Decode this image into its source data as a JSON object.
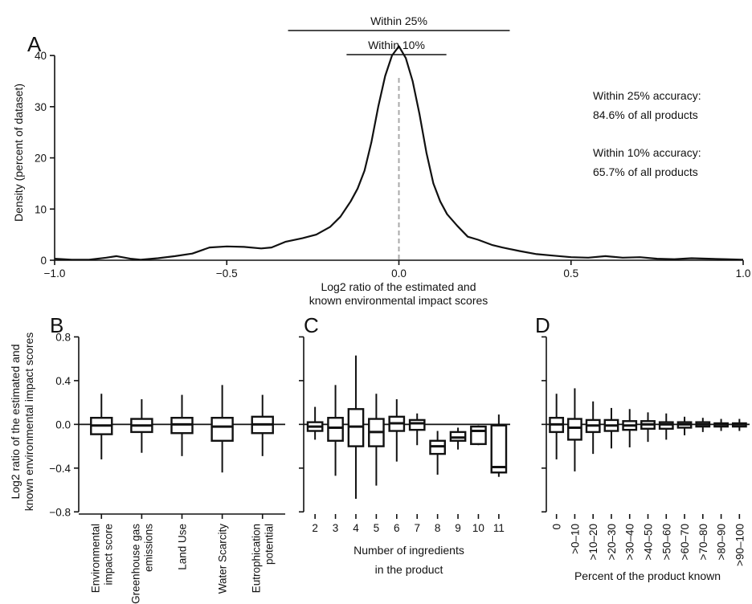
{
  "chart_data": [
    {
      "panel": "A",
      "type": "line",
      "xlabel_lines": [
        "Log2 ratio of the estimated and",
        "known environmental impact scores"
      ],
      "ylabel": "Density (percent of dataset)",
      "xlim": [
        -1.0,
        1.0
      ],
      "ylim": [
        0,
        43
      ],
      "x_ticks": [
        "−1.0",
        "−0.5",
        "0.0",
        "0.5",
        "1.0"
      ],
      "x_tick_values": [
        -1.0,
        -0.5,
        0.0,
        0.5,
        1.0
      ],
      "y_ticks": [
        0,
        10,
        20,
        30,
        40
      ],
      "reference_line_x": 0.0,
      "brackets": [
        {
          "label": "Within 25%",
          "from": -0.322,
          "to": 0.322
        },
        {
          "label": "Within 10%",
          "from": -0.152,
          "to": 0.138
        }
      ],
      "annotations": [
        [
          "Within 25% accuracy:",
          "84.6% of all products"
        ],
        [
          "Within 10% accuracy:",
          "65.7% of all products"
        ]
      ],
      "x": [
        -1.0,
        -0.95,
        -0.9,
        -0.85,
        -0.82,
        -0.78,
        -0.75,
        -0.7,
        -0.65,
        -0.6,
        -0.55,
        -0.5,
        -0.45,
        -0.4,
        -0.37,
        -0.33,
        -0.28,
        -0.24,
        -0.2,
        -0.17,
        -0.14,
        -0.12,
        -0.1,
        -0.08,
        -0.06,
        -0.04,
        -0.02,
        0.0,
        0.02,
        0.04,
        0.06,
        0.08,
        0.1,
        0.12,
        0.14,
        0.17,
        0.2,
        0.23,
        0.27,
        0.3,
        0.35,
        0.4,
        0.45,
        0.5,
        0.55,
        0.6,
        0.65,
        0.7,
        0.75,
        0.8,
        0.85,
        0.9,
        0.95,
        1.0
      ],
      "y": [
        0.3,
        0.1,
        0.1,
        0.5,
        0.8,
        0.3,
        0.1,
        0.4,
        0.8,
        1.3,
        2.5,
        2.7,
        2.6,
        2.3,
        2.5,
        3.6,
        4.3,
        5.0,
        6.5,
        8.5,
        11.5,
        14.0,
        17.5,
        23.0,
        30.0,
        36.0,
        40.0,
        41.8,
        39.5,
        35.0,
        28.5,
        21.0,
        15.0,
        11.5,
        9.0,
        6.7,
        4.6,
        4.0,
        3.0,
        2.5,
        1.8,
        1.2,
        0.9,
        0.6,
        0.5,
        0.8,
        0.5,
        0.6,
        0.3,
        0.2,
        0.4,
        0.3,
        0.2,
        0.1
      ]
    },
    {
      "panel": "B",
      "type": "box",
      "ylabel_lines": [
        "Log2 ratio of the estimated and",
        "known environmental impact scores"
      ],
      "ylim": [
        -0.82,
        0.84
      ],
      "y_ticks": [
        0.8,
        0.4,
        0.0,
        -0.4,
        -0.8
      ],
      "y_tick_labels": [
        "0.8",
        "0.4",
        "0.0",
        "−0.4",
        "−0.8"
      ],
      "categories": [
        [
          "Environmental",
          "impact score"
        ],
        [
          "Greenhouse gas",
          "emissions"
        ],
        [
          "Land Use"
        ],
        [
          "Water Scarcity"
        ],
        [
          "Eutrophication",
          "potential"
        ]
      ],
      "boxes": [
        {
          "whisker_low": -0.32,
          "q1": -0.09,
          "median": -0.01,
          "q3": 0.06,
          "whisker_high": 0.28
        },
        {
          "whisker_low": -0.26,
          "q1": -0.07,
          "median": -0.01,
          "q3": 0.05,
          "whisker_high": 0.23
        },
        {
          "whisker_low": -0.29,
          "q1": -0.08,
          "median": 0.0,
          "q3": 0.06,
          "whisker_high": 0.27
        },
        {
          "whisker_low": -0.44,
          "q1": -0.15,
          "median": -0.02,
          "q3": 0.06,
          "whisker_high": 0.36
        },
        {
          "whisker_low": -0.29,
          "q1": -0.08,
          "median": 0.0,
          "q3": 0.07,
          "whisker_high": 0.27
        }
      ]
    },
    {
      "panel": "C",
      "type": "box",
      "xlabel_lines": [
        "Number of ingredients",
        "in the product"
      ],
      "ylim": [
        -0.82,
        0.84
      ],
      "categories": [
        "2",
        "3",
        "4",
        "5",
        "6",
        "7",
        "8",
        "9",
        "10",
        "11"
      ],
      "boxes": [
        {
          "whisker_low": -0.14,
          "q1": -0.06,
          "median": -0.02,
          "q3": 0.02,
          "whisker_high": 0.16
        },
        {
          "whisker_low": -0.47,
          "q1": -0.15,
          "median": -0.03,
          "q3": 0.06,
          "whisker_high": 0.36
        },
        {
          "whisker_low": -0.68,
          "q1": -0.2,
          "median": -0.02,
          "q3": 0.14,
          "whisker_high": 0.63
        },
        {
          "whisker_low": -0.56,
          "q1": -0.2,
          "median": -0.07,
          "q3": 0.05,
          "whisker_high": 0.28
        },
        {
          "whisker_low": -0.34,
          "q1": -0.06,
          "median": 0.01,
          "q3": 0.07,
          "whisker_high": 0.23
        },
        {
          "whisker_low": -0.19,
          "q1": -0.05,
          "median": 0.01,
          "q3": 0.04,
          "whisker_high": 0.1
        },
        {
          "whisker_low": -0.46,
          "q1": -0.27,
          "median": -0.2,
          "q3": -0.15,
          "whisker_high": -0.06
        },
        {
          "whisker_low": -0.23,
          "q1": -0.15,
          "median": -0.12,
          "q3": -0.07,
          "whisker_high": -0.03
        },
        {
          "whisker_low": -0.19,
          "q1": -0.18,
          "median": -0.06,
          "q3": -0.02,
          "whisker_high": -0.01
        },
        {
          "whisker_low": -0.48,
          "q1": -0.44,
          "median": -0.39,
          "q3": -0.01,
          "whisker_high": 0.09
        }
      ]
    },
    {
      "panel": "D",
      "type": "box",
      "xlabel": "Percent of the product known",
      "ylim": [
        -0.82,
        0.84
      ],
      "categories": [
        "0",
        ">0–10",
        ">10–20",
        ">20–30",
        ">30–40",
        ">40–50",
        ">50–60",
        ">60–70",
        ">70–80",
        ">80–90",
        ">90–100"
      ],
      "boxes": [
        {
          "whisker_low": -0.32,
          "q1": -0.07,
          "median": 0.0,
          "q3": 0.06,
          "whisker_high": 0.28
        },
        {
          "whisker_low": -0.43,
          "q1": -0.14,
          "median": -0.03,
          "q3": 0.05,
          "whisker_high": 0.33
        },
        {
          "whisker_low": -0.27,
          "q1": -0.07,
          "median": -0.01,
          "q3": 0.04,
          "whisker_high": 0.21
        },
        {
          "whisker_low": -0.22,
          "q1": -0.06,
          "median": -0.01,
          "q3": 0.04,
          "whisker_high": 0.15
        },
        {
          "whisker_low": -0.21,
          "q1": -0.05,
          "median": -0.01,
          "q3": 0.03,
          "whisker_high": 0.14
        },
        {
          "whisker_low": -0.16,
          "q1": -0.04,
          "median": 0.0,
          "q3": 0.03,
          "whisker_high": 0.11
        },
        {
          "whisker_low": -0.14,
          "q1": -0.04,
          "median": 0.0,
          "q3": 0.02,
          "whisker_high": 0.1
        },
        {
          "whisker_low": -0.1,
          "q1": -0.03,
          "median": 0.0,
          "q3": 0.02,
          "whisker_high": 0.07
        },
        {
          "whisker_low": -0.07,
          "q1": -0.02,
          "median": 0.0,
          "q3": 0.02,
          "whisker_high": 0.06
        },
        {
          "whisker_low": -0.06,
          "q1": -0.02,
          "median": 0.0,
          "q3": 0.01,
          "whisker_high": 0.05
        },
        {
          "whisker_low": -0.06,
          "q1": -0.02,
          "median": 0.0,
          "q3": 0.01,
          "whisker_high": 0.05
        }
      ]
    }
  ]
}
